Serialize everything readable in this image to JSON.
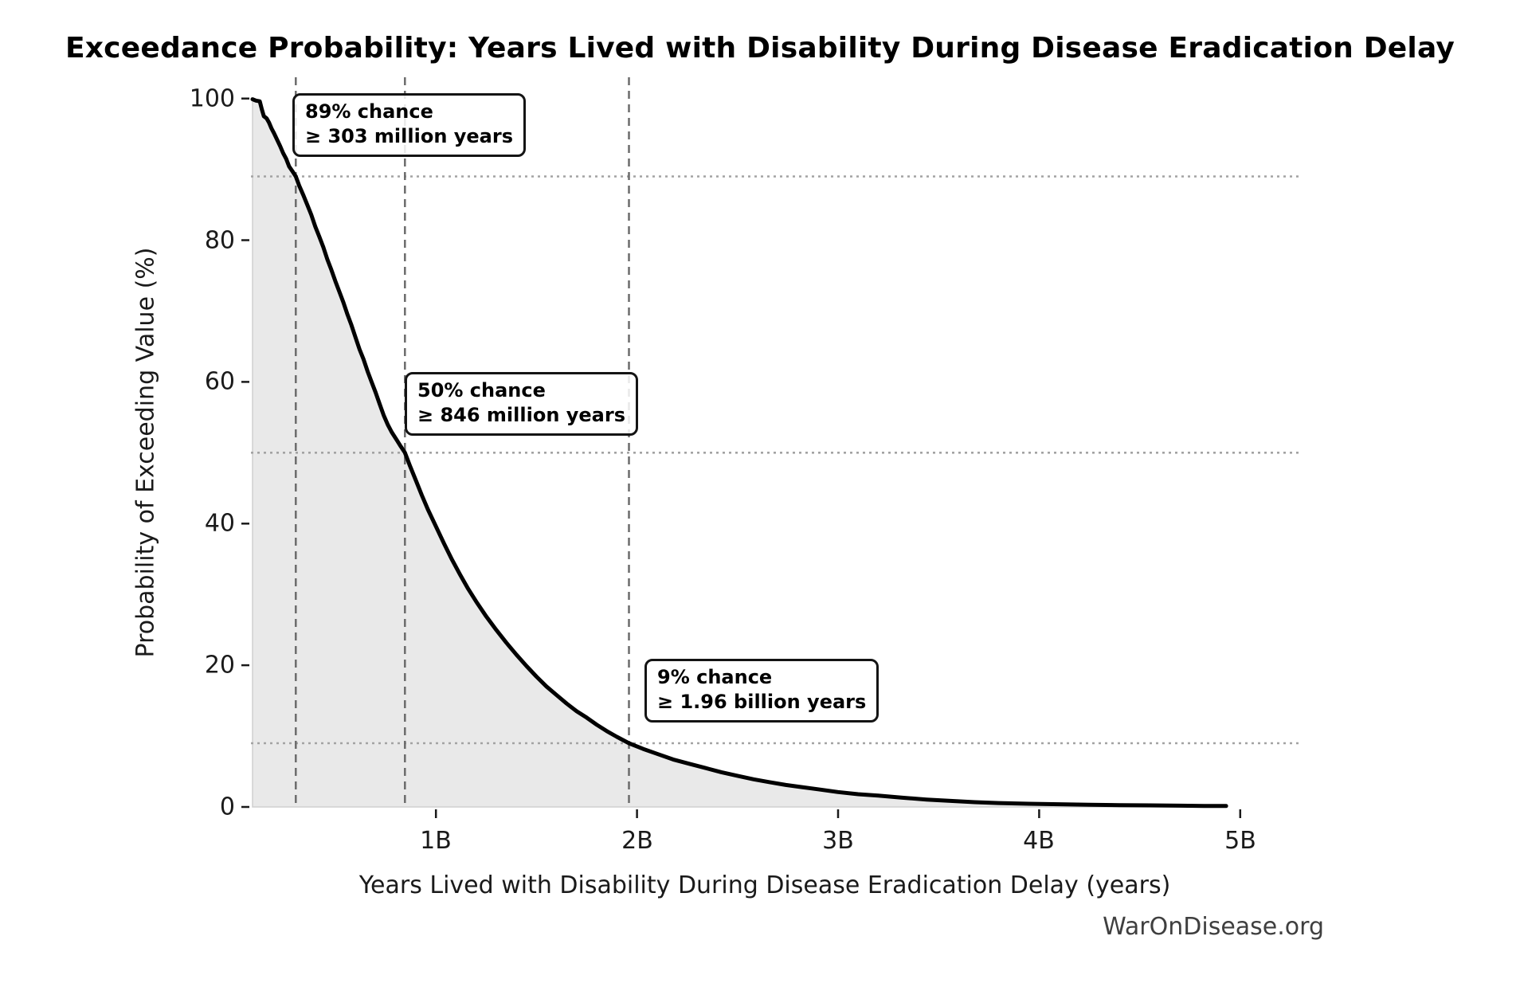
{
  "page": {
    "title": "Exceedance Probability: Years Lived with Disability During Disease Eradication Delay",
    "watermark": "WarOnDisease.org"
  },
  "chart_data": {
    "type": "area",
    "title": "Exceedance Probability: Years Lived with Disability During Disease Eradication Delay",
    "xlabel": "Years Lived with Disability During Disease Eradication Delay (years)",
    "ylabel": "Probability of Exceeding Value (%)",
    "x_unit": "billions of years",
    "xlim": [
      0.08,
      5.29
    ],
    "ylim": [
      0,
      103
    ],
    "grid": "off",
    "legend": "none",
    "x_ticks": [
      {
        "value": 1,
        "label": "1B"
      },
      {
        "value": 2,
        "label": "2B"
      },
      {
        "value": 3,
        "label": "3B"
      },
      {
        "value": 4,
        "label": "4B"
      },
      {
        "value": 5,
        "label": "5B"
      }
    ],
    "y_ticks": [
      {
        "value": 0,
        "label": "0"
      },
      {
        "value": 20,
        "label": "20"
      },
      {
        "value": 40,
        "label": "40"
      },
      {
        "value": 60,
        "label": "60"
      },
      {
        "value": 80,
        "label": "80"
      },
      {
        "value": 100,
        "label": "100"
      }
    ],
    "series": [
      {
        "name": "exceedance-curve",
        "points": [
          [
            0.088,
            99.9
          ],
          [
            0.105,
            99.7
          ],
          [
            0.124,
            99.6
          ],
          [
            0.134,
            98.5
          ],
          [
            0.144,
            97.5
          ],
          [
            0.158,
            97.2
          ],
          [
            0.17,
            96.6
          ],
          [
            0.182,
            95.8
          ],
          [
            0.195,
            95.1
          ],
          [
            0.21,
            94.2
          ],
          [
            0.225,
            93.3
          ],
          [
            0.24,
            92.3
          ],
          [
            0.255,
            91.5
          ],
          [
            0.27,
            90.4
          ],
          [
            0.285,
            89.8
          ],
          [
            0.303,
            89.0
          ],
          [
            0.32,
            87.7
          ],
          [
            0.34,
            86.4
          ],
          [
            0.36,
            85.0
          ],
          [
            0.38,
            83.6
          ],
          [
            0.4,
            81.9
          ],
          [
            0.42,
            80.5
          ],
          [
            0.44,
            79.0
          ],
          [
            0.46,
            77.3
          ],
          [
            0.48,
            75.8
          ],
          [
            0.5,
            74.2
          ],
          [
            0.52,
            72.7
          ],
          [
            0.54,
            71.2
          ],
          [
            0.56,
            69.5
          ],
          [
            0.58,
            68.0
          ],
          [
            0.6,
            66.3
          ],
          [
            0.62,
            64.6
          ],
          [
            0.64,
            63.2
          ],
          [
            0.66,
            61.5
          ],
          [
            0.68,
            60.0
          ],
          [
            0.7,
            58.5
          ],
          [
            0.72,
            56.9
          ],
          [
            0.74,
            55.3
          ],
          [
            0.76,
            54.0
          ],
          [
            0.78,
            52.9
          ],
          [
            0.805,
            51.8
          ],
          [
            0.825,
            50.9
          ],
          [
            0.846,
            50.0
          ],
          [
            0.87,
            48.2
          ],
          [
            0.9,
            46.1
          ],
          [
            0.93,
            44.0
          ],
          [
            0.96,
            42.0
          ],
          [
            1.0,
            39.6
          ],
          [
            1.04,
            37.2
          ],
          [
            1.08,
            34.9
          ],
          [
            1.12,
            32.8
          ],
          [
            1.16,
            30.8
          ],
          [
            1.2,
            29.0
          ],
          [
            1.25,
            26.9
          ],
          [
            1.3,
            25.0
          ],
          [
            1.35,
            23.2
          ],
          [
            1.4,
            21.5
          ],
          [
            1.45,
            19.9
          ],
          [
            1.5,
            18.4
          ],
          [
            1.55,
            17.0
          ],
          [
            1.6,
            15.8
          ],
          [
            1.65,
            14.6
          ],
          [
            1.7,
            13.5
          ],
          [
            1.75,
            12.6
          ],
          [
            1.8,
            11.6
          ],
          [
            1.85,
            10.7
          ],
          [
            1.9,
            9.9
          ],
          [
            1.96,
            9.0
          ],
          [
            2.03,
            8.2
          ],
          [
            2.1,
            7.5
          ],
          [
            2.18,
            6.7
          ],
          [
            2.26,
            6.1
          ],
          [
            2.34,
            5.5
          ],
          [
            2.42,
            4.9
          ],
          [
            2.5,
            4.4
          ],
          [
            2.58,
            3.9
          ],
          [
            2.66,
            3.5
          ],
          [
            2.74,
            3.1
          ],
          [
            2.82,
            2.8
          ],
          [
            2.9,
            2.5
          ],
          [
            3.0,
            2.1
          ],
          [
            3.1,
            1.8
          ],
          [
            3.2,
            1.6
          ],
          [
            3.32,
            1.3
          ],
          [
            3.44,
            1.05
          ],
          [
            3.56,
            0.85
          ],
          [
            3.68,
            0.68
          ],
          [
            3.8,
            0.55
          ],
          [
            3.95,
            0.45
          ],
          [
            4.1,
            0.38
          ],
          [
            4.25,
            0.32
          ],
          [
            4.4,
            0.26
          ],
          [
            4.55,
            0.22
          ],
          [
            4.7,
            0.18
          ],
          [
            4.82,
            0.15
          ],
          [
            4.93,
            0.13
          ]
        ]
      }
    ],
    "reference_lines": {
      "vertical_x": [
        0.303,
        0.846,
        1.96
      ],
      "horizontal_y": [
        89,
        50,
        9
      ]
    },
    "annotations": [
      {
        "line1": "89% chance",
        "line2": "≥ 303 million years",
        "x": 0.303,
        "y": 89
      },
      {
        "line1": "50% chance",
        "line2": "≥ 846 million years",
        "x": 0.846,
        "y": 50
      },
      {
        "line1": "9% chance",
        "line2": "≥ 1.96 billion years",
        "x": 1.96,
        "y": 9
      }
    ],
    "colors": {
      "curve": "#000000",
      "fill": "#e9e9e9",
      "fill_edge": "#cfcfcf",
      "dashed_line": "#6b6b6b",
      "dotted_line": "#a3a3a3",
      "tick": "#1a1a1a",
      "watermark": "#3f3f3f",
      "background": "#ffffff"
    }
  }
}
